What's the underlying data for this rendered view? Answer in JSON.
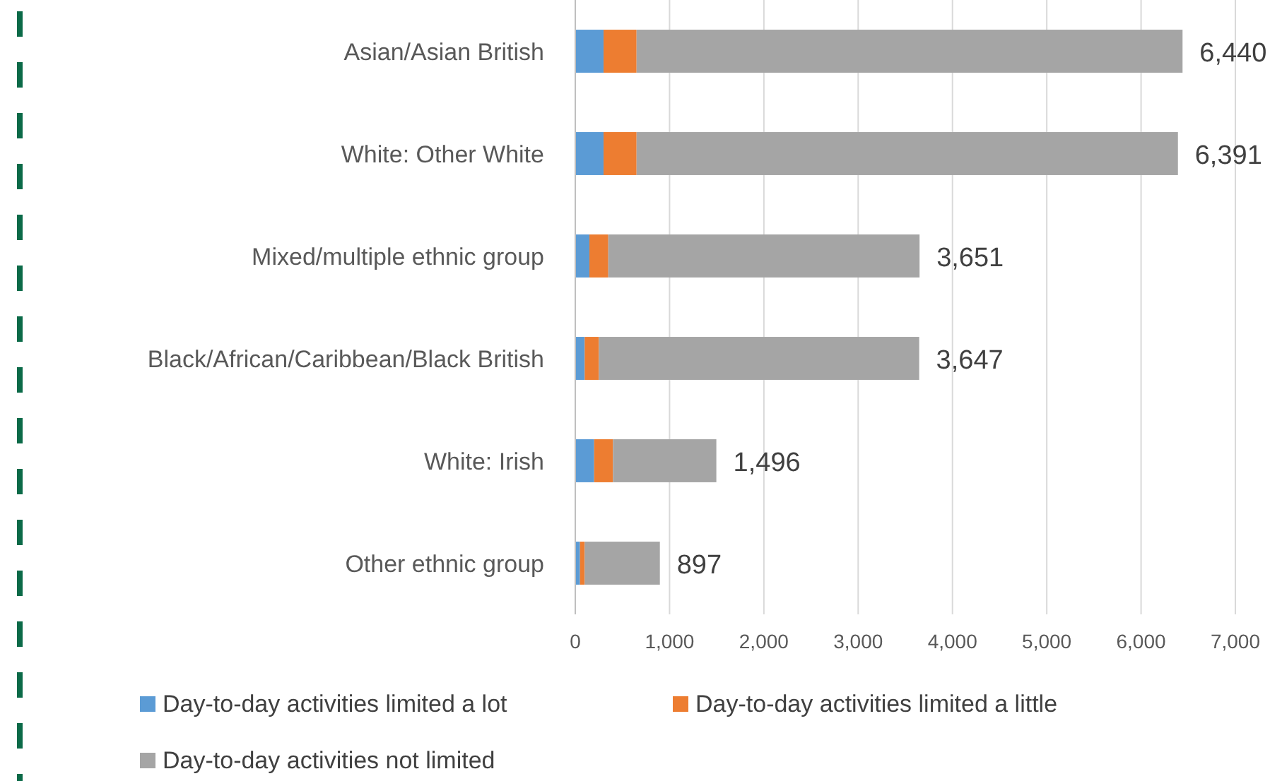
{
  "chart_data": {
    "type": "bar",
    "orientation": "horizontal",
    "stacked": true,
    "categories": [
      "Asian/Asian British",
      "White: Other White",
      "Mixed/multiple ethnic group",
      "Black/African/Caribbean/Black British",
      "White: Irish",
      "Other ethnic group"
    ],
    "series": [
      {
        "name": "Day-to-day activities limited a lot",
        "color": "#5b9bd5",
        "values": [
          300,
          300,
          150,
          100,
          200,
          50
        ]
      },
      {
        "name": "Day-to-day activities limited a little",
        "color": "#ed7d31",
        "values": [
          350,
          350,
          200,
          150,
          200,
          50
        ]
      },
      {
        "name": "Day-to-day activities not limited",
        "color": "#a5a5a5",
        "values": [
          5790,
          5741,
          3301,
          3397,
          1096,
          797
        ]
      }
    ],
    "totals": [
      "6,440",
      "6,391",
      "3,651",
      "3,647",
      "1,496",
      "897"
    ],
    "xlim": [
      0,
      7000
    ],
    "xticks": [
      {
        "value": 0,
        "label": "0"
      },
      {
        "value": 1000,
        "label": "1,000"
      },
      {
        "value": 2000,
        "label": "2,000"
      },
      {
        "value": 3000,
        "label": "3,000"
      },
      {
        "value": 4000,
        "label": "4,000"
      },
      {
        "value": 5000,
        "label": "5,000"
      },
      {
        "value": 6000,
        "label": "6,000"
      },
      {
        "value": 7000,
        "label": "7,000"
      }
    ],
    "grid": "x",
    "legend": "bottom"
  }
}
